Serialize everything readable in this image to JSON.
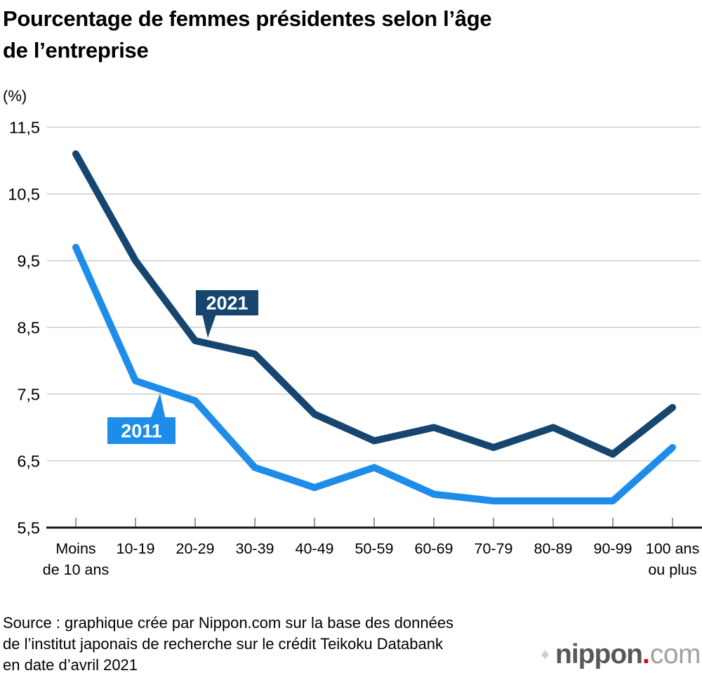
{
  "chart_data": {
    "type": "line",
    "title": "Pourcentage de femmes présidentes selon l’âge de l’entreprise",
    "title_lines": [
      "Pourcentage de femmes présidentes selon l’âge",
      "de l’entreprise"
    ],
    "unit_label": "(%)",
    "categories": [
      "Moins\nde 10 ans",
      "10-19",
      "20-29",
      "30-39",
      "40-49",
      "50-59",
      "60-69",
      "70-79",
      "80-89",
      "90-99",
      "100 ans\nou plus"
    ],
    "series": [
      {
        "name": "2021",
        "color": "#16466f",
        "values": [
          11.1,
          9.5,
          8.3,
          8.1,
          7.2,
          6.8,
          7.0,
          6.7,
          7.0,
          6.6,
          7.3
        ]
      },
      {
        "name": "2011",
        "color": "#1e8de9",
        "values": [
          9.7,
          7.7,
          7.4,
          6.4,
          6.1,
          6.4,
          6.0,
          5.9,
          5.9,
          5.9,
          6.7
        ]
      }
    ],
    "xlabel": "",
    "ylabel": "(%)",
    "ylim": [
      5.5,
      11.5
    ],
    "ytick_labels": [
      "5,5",
      "6,5",
      "7,5",
      "8,5",
      "9,5",
      "10,5",
      "11,5"
    ],
    "grid": true,
    "legend_position": "callout-labels-on-lines"
  },
  "colors": {
    "grid": "#cdcdcd",
    "axis": "#1a1a1a",
    "tick": "#999999"
  },
  "source_lines": [
    "Source : graphique crée par Nippon.com sur la base des données",
    "de l’institut japonais de recherche sur le crédit Teikoku Databank",
    "en date d’avril 2021"
  ],
  "logo": {
    "word": "nippon",
    "dot": ".",
    "tld": "com",
    "colors": {
      "word": "#595757",
      "dot": "#e60012",
      "tld": "#9fa0a0",
      "icon": "#b5b5b6"
    }
  }
}
